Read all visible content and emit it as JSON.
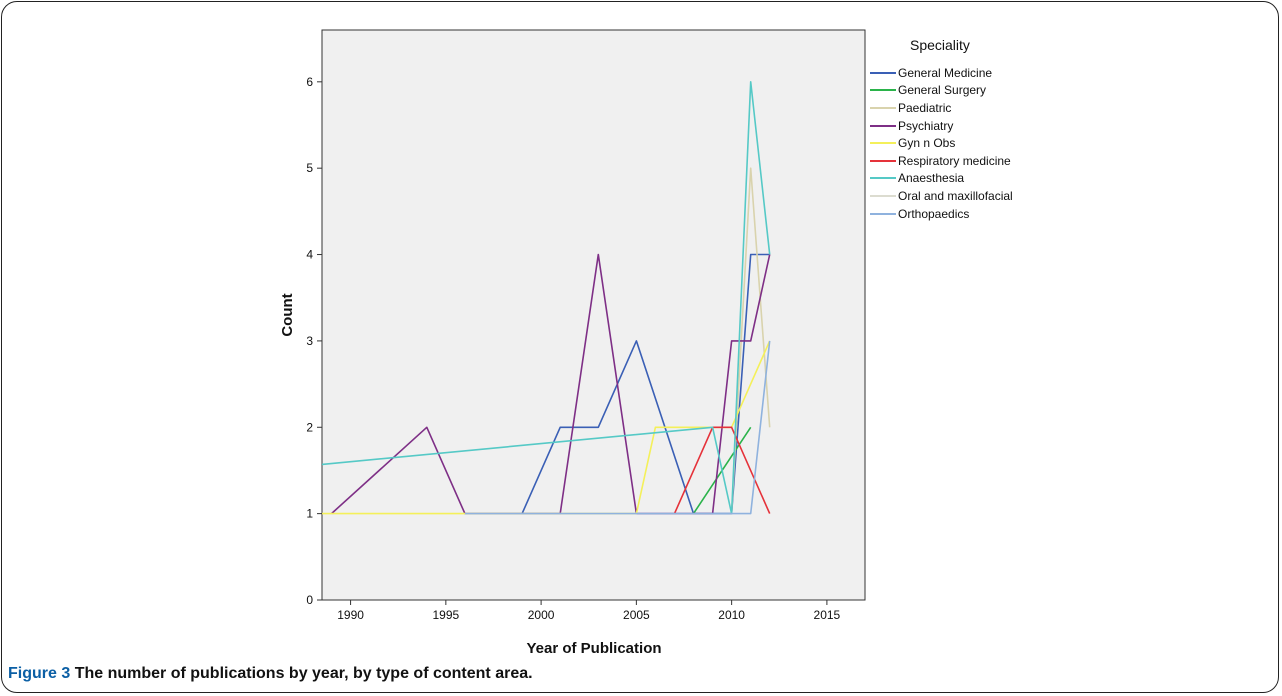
{
  "caption": {
    "label": "Figure 3",
    "text": "The number of publications by year, by type of content area."
  },
  "chart_data": {
    "type": "line",
    "xlabel": "Year of Publication",
    "ylabel": "Count",
    "xlim": [
      1988.5,
      2017
    ],
    "ylim": [
      0,
      6.6
    ],
    "x_ticks": [
      "1990",
      "1995",
      "2000",
      "2005",
      "2010",
      "2015"
    ],
    "y_ticks": [
      "0",
      "1",
      "2",
      "3",
      "4",
      "5",
      "6"
    ],
    "plot_background": "#f0f0f0",
    "grid": false,
    "legend_title": "Speciality",
    "legend_position": "right",
    "series": [
      {
        "name": "General Medicine",
        "color": "#3a5fb5",
        "x": [
          1999,
          2001,
          2003,
          2005,
          2008,
          2010,
          2011,
          2012
        ],
        "y": [
          1,
          2,
          2,
          3,
          1,
          1,
          4,
          4
        ]
      },
      {
        "name": "General Surgery",
        "color": "#2ab34a",
        "x": [
          2008,
          2011
        ],
        "y": [
          1,
          2
        ]
      },
      {
        "name": "Paediatric",
        "color": "#d9d3ad",
        "x": [
          2010,
          2011,
          2012
        ],
        "y": [
          1,
          5,
          2
        ]
      },
      {
        "name": "Psychiatry",
        "color": "#7e2f86",
        "x": [
          1989,
          1994,
          1996,
          2001,
          2003,
          2005,
          2009,
          2010,
          2011,
          2012
        ],
        "y": [
          1,
          2,
          1,
          1,
          4,
          1,
          1,
          3,
          3,
          4
        ]
      },
      {
        "name": "Gyn n Obs",
        "color": "#f4f05a",
        "x": [
          1988.5,
          2005,
          2006,
          2010,
          2012
        ],
        "y": [
          1,
          1,
          2,
          2,
          3
        ]
      },
      {
        "name": "Respiratory medicine",
        "color": "#e5323a",
        "x": [
          2007,
          2009,
          2010,
          2012
        ],
        "y": [
          1,
          2,
          2,
          1
        ]
      },
      {
        "name": "Anaesthesia",
        "color": "#55c9c6",
        "x": [
          1988.5,
          2009,
          2010,
          2011,
          2012
        ],
        "y": [
          1.57,
          2,
          1,
          6,
          4
        ]
      },
      {
        "name": "Oral and maxillofacial",
        "color": "#dcdcd0",
        "x": [],
        "y": []
      },
      {
        "name": "Orthopaedics",
        "color": "#8fb2de",
        "x": [
          1996,
          2011,
          2012
        ],
        "y": [
          1,
          1,
          3
        ]
      }
    ]
  }
}
